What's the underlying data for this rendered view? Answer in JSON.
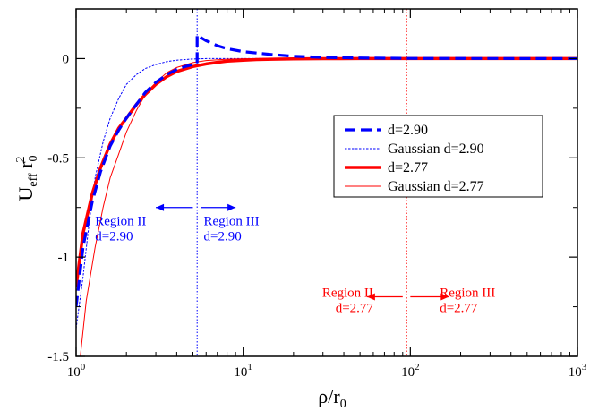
{
  "chart_data": {
    "type": "line",
    "title": "",
    "xlabel": "ρ/r0",
    "ylabel": "Ueff r0²",
    "xscale": "log",
    "xlim": [
      1,
      1000
    ],
    "ylim": [
      -1.5,
      0.25
    ],
    "x_ticks": [
      {
        "value": 1,
        "base": "10",
        "exp": "0"
      },
      {
        "value": 10,
        "base": "10",
        "exp": "1"
      },
      {
        "value": 100,
        "base": "10",
        "exp": "2"
      },
      {
        "value": 1000,
        "base": "10",
        "exp": "3"
      }
    ],
    "y_ticks": [
      {
        "value": 0,
        "label": "0"
      },
      {
        "value": -0.5,
        "label": "-0.5"
      },
      {
        "value": -1,
        "label": "-1"
      },
      {
        "value": -1.5,
        "label": "-1.5"
      }
    ],
    "grid": false,
    "legend_position": "right",
    "series": [
      {
        "name": "d=2.90",
        "color": "#0000ff",
        "style": "dashed-thick",
        "x": [
          1.0,
          1.1,
          1.25,
          1.4,
          1.6,
          1.8,
          2.0,
          2.3,
          2.6,
          3.0,
          3.5,
          4.0,
          4.5,
          5.0,
          5.3,
          5.3,
          5.6,
          6.0,
          7.0,
          8.0,
          10.0,
          15.0,
          20.0,
          30.0,
          50.0,
          100.0,
          1000.0
        ],
        "y": [
          -1.25,
          -0.95,
          -0.72,
          -0.57,
          -0.44,
          -0.36,
          -0.3,
          -0.23,
          -0.17,
          -0.12,
          -0.08,
          -0.055,
          -0.04,
          -0.03,
          -0.025,
          0.12,
          0.105,
          0.09,
          0.065,
          0.05,
          0.035,
          0.02,
          0.012,
          0.006,
          0.003,
          0.001,
          0.0
        ]
      },
      {
        "name": "Gaussian d=2.90",
        "color": "#0000ff",
        "style": "thin",
        "x": [
          1.0,
          1.1,
          1.2,
          1.3,
          1.45,
          1.6,
          1.8,
          2.0,
          2.3,
          2.6,
          3.0,
          3.5,
          4.0,
          5.0,
          6.0,
          8.0,
          10.0,
          15.0,
          30.0,
          1000.0
        ],
        "y": [
          -1.36,
          -1.1,
          -0.82,
          -0.6,
          -0.42,
          -0.3,
          -0.2,
          -0.13,
          -0.08,
          -0.05,
          -0.03,
          -0.015,
          -0.008,
          -0.002,
          0.0,
          0.0,
          0.0,
          0.0,
          0.0,
          0.0
        ]
      },
      {
        "name": "d=2.77",
        "color": "#ff0000",
        "style": "solid-thick",
        "x": [
          1.0,
          1.1,
          1.25,
          1.4,
          1.6,
          1.8,
          2.0,
          2.3,
          2.6,
          3.0,
          3.5,
          4.0,
          5.0,
          6.0,
          7.0,
          8.0,
          10.0,
          12.0,
          15.0,
          20.0,
          30.0,
          50.0,
          100.0,
          1000.0
        ],
        "y": [
          -1.15,
          -0.88,
          -0.68,
          -0.55,
          -0.43,
          -0.35,
          -0.3,
          -0.23,
          -0.18,
          -0.13,
          -0.09,
          -0.065,
          -0.04,
          -0.027,
          -0.019,
          -0.013,
          -0.008,
          -0.005,
          -0.003,
          -0.0015,
          -0.0005,
          0.0,
          0.0,
          0.0
        ]
      },
      {
        "name": "Gaussian d=2.77",
        "color": "#ff0000",
        "style": "thin",
        "x": [
          1.06,
          1.15,
          1.3,
          1.45,
          1.6,
          1.8,
          2.0,
          2.3,
          2.6,
          3.0,
          3.5,
          4.0,
          5.0,
          6.0,
          8.0,
          10.0,
          15.0,
          30.0,
          1000.0
        ],
        "y": [
          -1.5,
          -1.22,
          -0.95,
          -0.75,
          -0.6,
          -0.48,
          -0.37,
          -0.26,
          -0.18,
          -0.12,
          -0.07,
          -0.045,
          -0.02,
          -0.01,
          -0.003,
          -0.001,
          0.0,
          0.0,
          0.0
        ]
      }
    ],
    "reference_lines": [
      {
        "x": 5.3,
        "color": "#0000ff"
      },
      {
        "x": 95,
        "color": "#ff0000"
      }
    ],
    "annotations": [
      {
        "id": "blue-left",
        "lines": [
          "Region II",
          "d=2.90"
        ],
        "x": 1.3,
        "y": -0.84,
        "color": "#0000ff",
        "anchor": "start"
      },
      {
        "id": "blue-right",
        "lines": [
          "Region III",
          "d=2.90"
        ],
        "x": 5.8,
        "y": -0.84,
        "color": "#0000ff",
        "anchor": "start"
      },
      {
        "id": "red-left",
        "lines": [
          "Region II",
          "d=2.77"
        ],
        "x": 60,
        "y": -1.2,
        "color": "#ff0000",
        "anchor": "end"
      },
      {
        "id": "red-right",
        "lines": [
          "Region III",
          "d=2.77"
        ],
        "x": 150,
        "y": -1.2,
        "color": "#ff0000",
        "anchor": "start"
      }
    ],
    "arrows": [
      {
        "id": "blue-left-arrow",
        "from": 5.0,
        "to": 3.0,
        "y": -0.75,
        "color": "#0000ff"
      },
      {
        "id": "blue-right-arrow",
        "from": 5.6,
        "to": 9.0,
        "y": -0.75,
        "color": "#0000ff"
      },
      {
        "id": "red-left-arrow",
        "from": 90,
        "to": 55,
        "y": -1.2,
        "color": "#ff0000"
      },
      {
        "id": "red-right-arrow",
        "from": 100,
        "to": 170,
        "y": -1.2,
        "color": "#ff0000"
      }
    ]
  }
}
